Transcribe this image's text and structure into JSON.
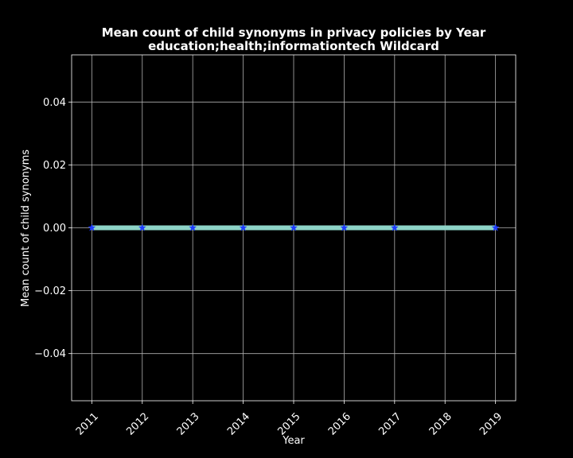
{
  "chart_data": {
    "type": "line",
    "title": "Mean count of child synonyms in privacy policies by Year",
    "subtitle": "education;health;informationtech Wildcard",
    "xlabel": "Year",
    "ylabel": "Mean count of child synonyms",
    "x": [
      2011,
      2012,
      2013,
      2014,
      2015,
      2016,
      2017,
      2019
    ],
    "x_ticks": [
      "2011",
      "2012",
      "2013",
      "2014",
      "2015",
      "2016",
      "2017",
      "2018",
      "2019"
    ],
    "y_ticks": [
      "−0.04",
      "−0.02",
      "0.00",
      "0.02",
      "0.04"
    ],
    "y_tick_values": [
      -0.04,
      -0.02,
      0.0,
      0.02,
      0.04
    ],
    "xlim": [
      2010.6,
      2019.4
    ],
    "ylim": [
      -0.055,
      0.055
    ],
    "series": [
      {
        "values": [
          0,
          0,
          0,
          0,
          0,
          0,
          0,
          0
        ]
      }
    ],
    "grid": true,
    "line_color": "#8dd3c7",
    "marker_color": "#1f3cff",
    "background_color": "#000000",
    "axis_color": "#ffffff",
    "grid_color": "#b0b0b0"
  }
}
